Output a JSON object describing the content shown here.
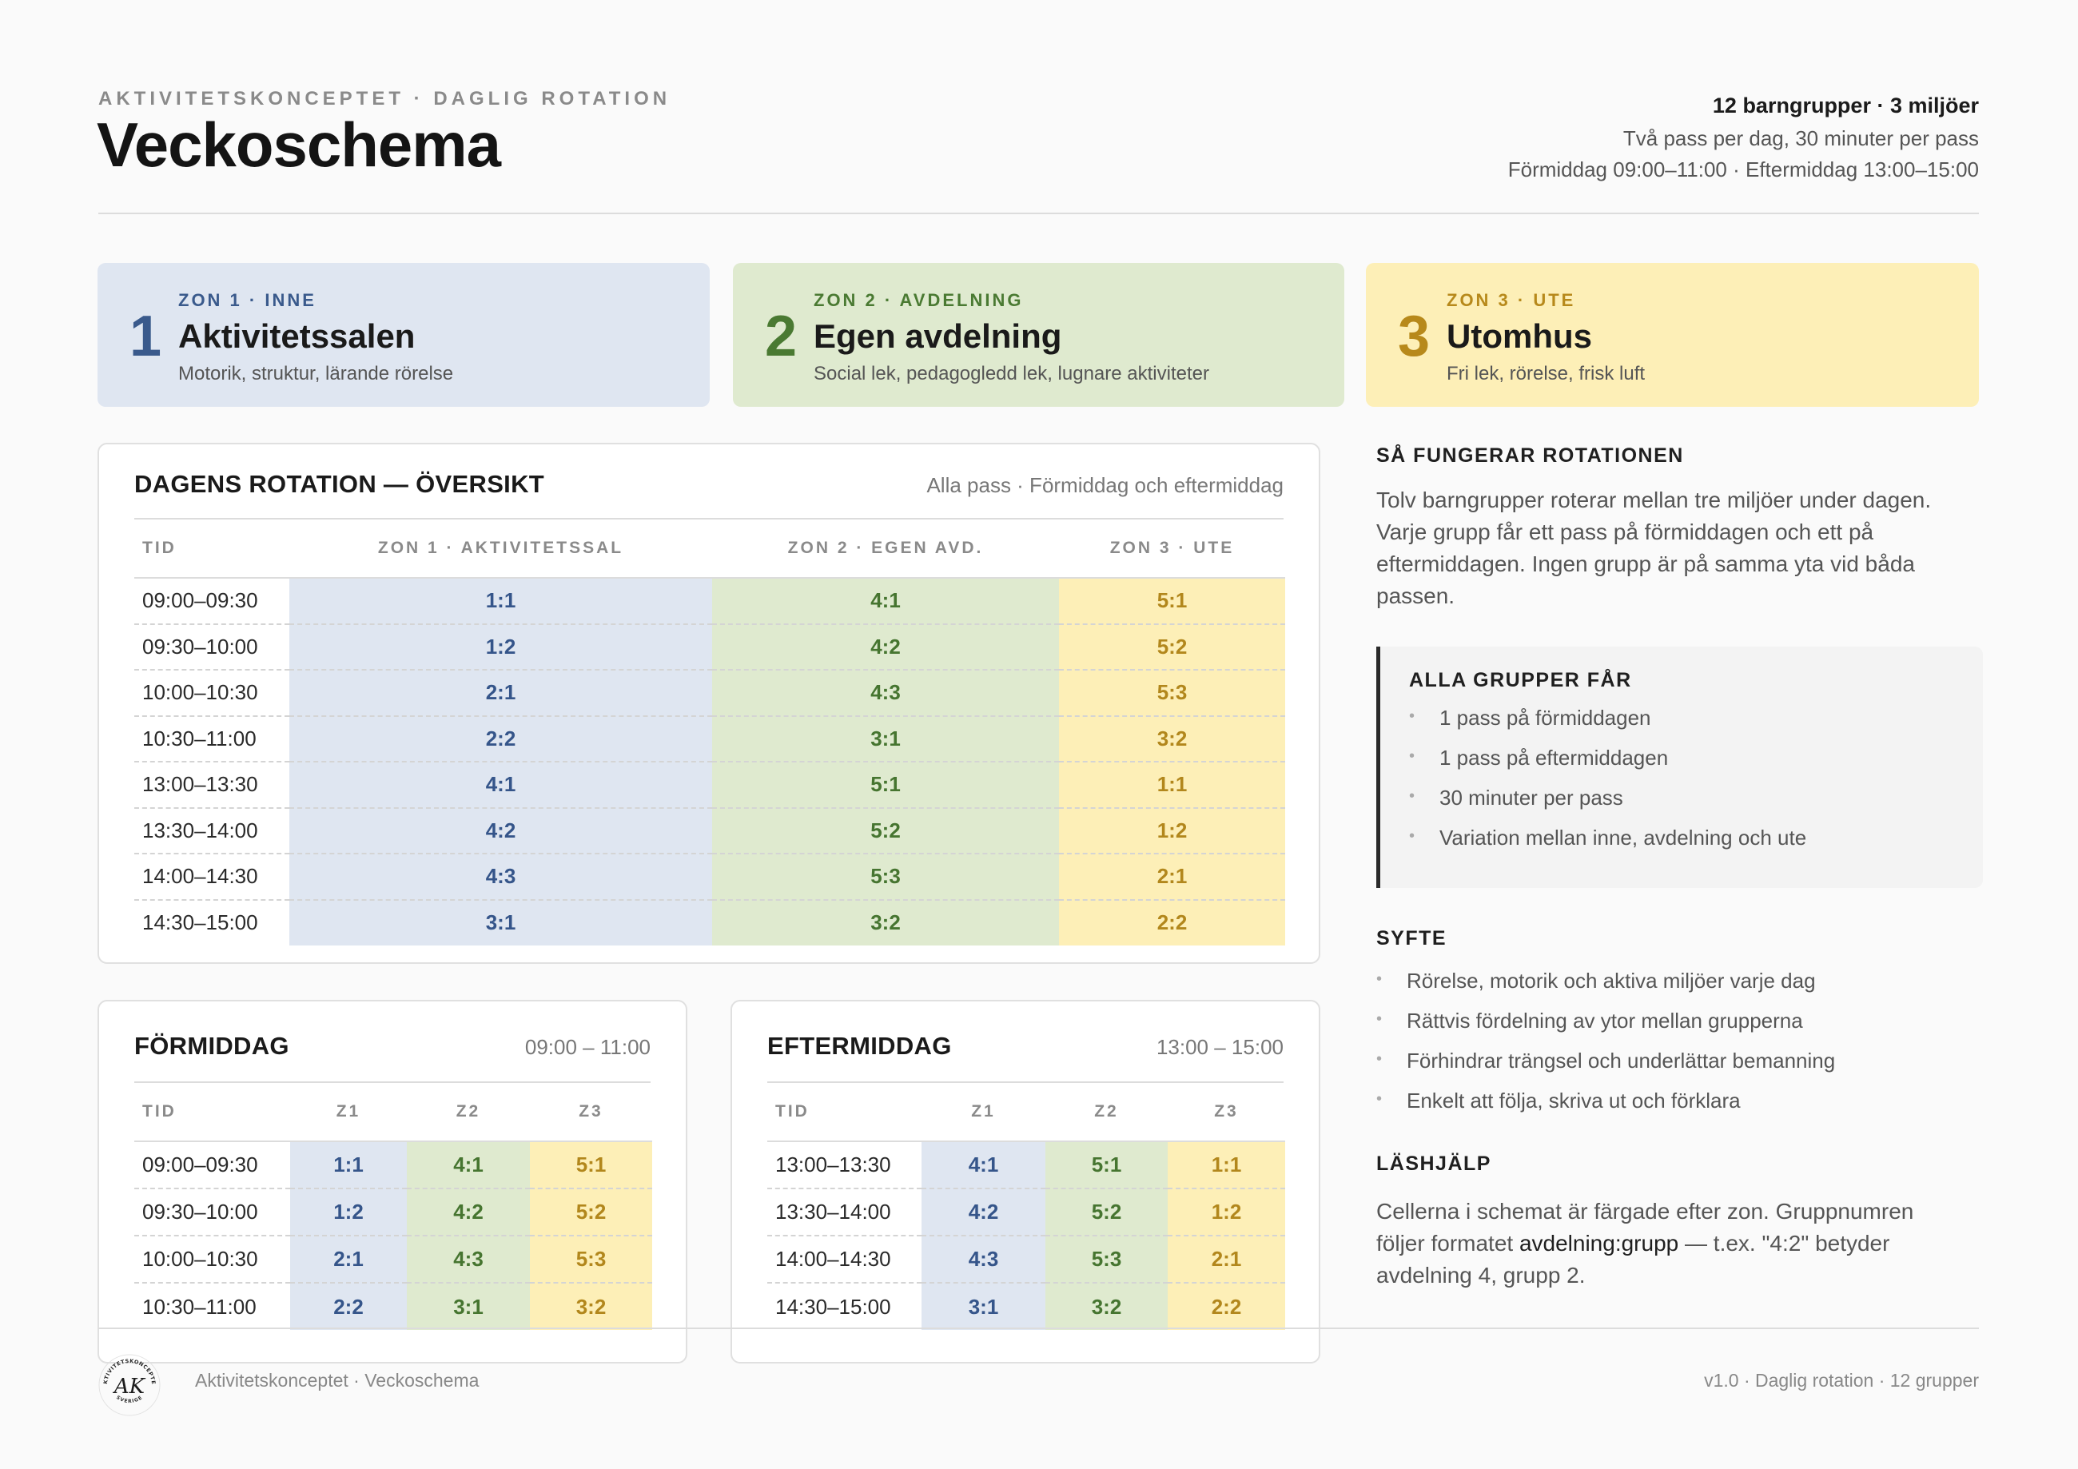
{
  "header": {
    "eyebrow": "AKTIVITETSKONCEPTET · DAGLIG ROTATION",
    "title": "Veckoschema",
    "summary": "12 barngrupper · 3 miljöer",
    "line1": "Två pass per dag, 30 minuter per pass",
    "line2": "Förmiddag 09:00–11:00 · Eftermiddag 13:00–15:00"
  },
  "zones": [
    {
      "num": "1",
      "label": "ZON 1 · INNE",
      "name": "Aktivitetssalen",
      "desc": "Motorik, struktur, lärande rörelse",
      "color": "#3a5a8c"
    },
    {
      "num": "2",
      "label": "ZON 2 · AVDELNING",
      "name": "Egen avdelning",
      "desc": "Social lek, pedagogledd lek, lugnare aktiviteter",
      "color": "#4a7a32"
    },
    {
      "num": "3",
      "label": "ZON 3 · UTE",
      "name": "Utomhus",
      "desc": "Fri lek, rörelse, frisk luft",
      "color": "#b7891b"
    }
  ],
  "overview": {
    "title": "DAGENS ROTATION — ÖVERSIKT",
    "subtitle": "Alla pass · Förmiddag och eftermiddag",
    "headers": [
      "TID",
      "ZON 1 · AKTIVITETSSAL",
      "ZON 2 · EGEN AVD.",
      "ZON 3 · UTE"
    ],
    "rows": [
      [
        "09:00–09:30",
        "1:1",
        "4:1",
        "5:1"
      ],
      [
        "09:30–10:00",
        "1:2",
        "4:2",
        "5:2"
      ],
      [
        "10:00–10:30",
        "2:1",
        "4:3",
        "5:3"
      ],
      [
        "10:30–11:00",
        "2:2",
        "3:1",
        "3:2"
      ],
      [
        "13:00–13:30",
        "4:1",
        "5:1",
        "1:1"
      ],
      [
        "13:30–14:00",
        "4:2",
        "5:2",
        "1:2"
      ],
      [
        "14:00–14:30",
        "4:3",
        "5:3",
        "2:1"
      ],
      [
        "14:30–15:00",
        "3:1",
        "3:2",
        "2:2"
      ]
    ]
  },
  "morning": {
    "title": "FÖRMIDDAG",
    "range": "09:00 – 11:00",
    "headers": [
      "TID",
      "Z1",
      "Z2",
      "Z3"
    ],
    "rows": [
      [
        "09:00–09:30",
        "1:1",
        "4:1",
        "5:1"
      ],
      [
        "09:30–10:00",
        "1:2",
        "4:2",
        "5:2"
      ],
      [
        "10:00–10:30",
        "2:1",
        "4:3",
        "5:3"
      ],
      [
        "10:30–11:00",
        "2:2",
        "3:1",
        "3:2"
      ]
    ]
  },
  "afternoon": {
    "title": "EFTERMIDDAG",
    "range": "13:00 – 15:00",
    "headers": [
      "TID",
      "Z1",
      "Z2",
      "Z3"
    ],
    "rows": [
      [
        "13:00–13:30",
        "4:1",
        "5:1",
        "1:1"
      ],
      [
        "13:30–14:00",
        "4:2",
        "5:2",
        "1:2"
      ],
      [
        "14:00–14:30",
        "4:3",
        "5:3",
        "2:1"
      ],
      [
        "14:30–15:00",
        "3:1",
        "3:2",
        "2:2"
      ]
    ]
  },
  "rotation": {
    "heading": "SÅ FUNGERAR ROTATIONEN",
    "text": "Tolv barngrupper roterar mellan tre miljöer under dagen. Varje grupp får ett pass på förmiddagen och ett på eftermiddagen. Ingen grupp är på samma yta vid båda passen."
  },
  "all_groups": {
    "heading": "ALLA GRUPPER FÅR",
    "items": [
      "1 pass på förmiddagen",
      "1 pass på eftermiddagen",
      "30 minuter per pass",
      "Variation mellan inne, avdelning och ute"
    ]
  },
  "purpose": {
    "heading": "SYFTE",
    "items": [
      "Rörelse, motorik och aktiva miljöer varje dag",
      "Rättvis fördelning av ytor mellan grupperna",
      "Förhindrar trängsel och underlättar bemanning",
      "Enkelt att följa, skriva ut och förklara"
    ]
  },
  "reading": {
    "heading": "LÄSHJÄLP",
    "text_before": "Cellerna i schemat är färgade efter zon. Gruppnumren följer formatet ",
    "format": "avdelning:grupp",
    "text_after": " — t.ex. \"4:2\" betyder avdelning 4, grupp 2."
  },
  "footer": {
    "left": "Aktivitetskonceptet · Veckoschema",
    "right": "v1.0 · Daglig rotation · 12 grupper",
    "logo_text": "AK",
    "logo_ring_top": "AKTIVITETSKONCEPTET",
    "logo_ring_bottom": "SVERIGE"
  }
}
